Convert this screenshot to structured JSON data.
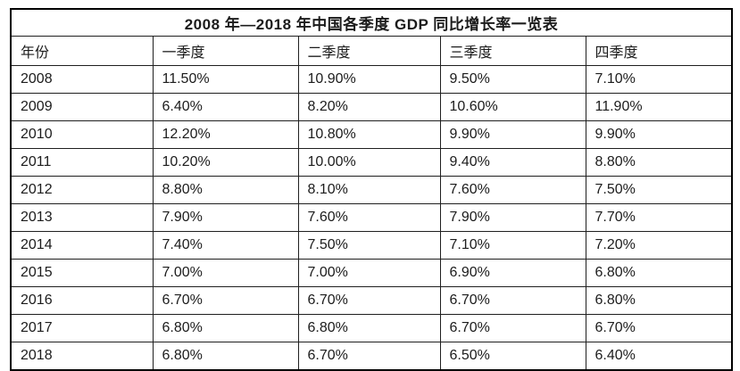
{
  "colors": {
    "background": "#ffffff",
    "outer_border": "#000000",
    "inner_border": "#1f1f1f",
    "text": "#1c1c1c"
  },
  "chart_data": {
    "type": "table",
    "title": "2008 年—2018 年中国各季度 GDP 同比增长率一览表",
    "headers": [
      "年份",
      "一季度",
      "二季度",
      "三季度",
      "四季度"
    ],
    "rows": [
      [
        "2008",
        "11.50%",
        "10.90%",
        "9.50%",
        "7.10%"
      ],
      [
        "2009",
        "6.40%",
        "8.20%",
        "10.60%",
        "11.90%"
      ],
      [
        "2010",
        "12.20%",
        "10.80%",
        "9.90%",
        "9.90%"
      ],
      [
        "2011",
        "10.20%",
        "10.00%",
        "9.40%",
        "8.80%"
      ],
      [
        "2012",
        "8.80%",
        "8.10%",
        "7.60%",
        "7.50%"
      ],
      [
        "2013",
        "7.90%",
        "7.60%",
        "7.90%",
        "7.70%"
      ],
      [
        "2014",
        "7.40%",
        "7.50%",
        "7.10%",
        "7.20%"
      ],
      [
        "2015",
        "7.00%",
        "7.00%",
        "6.90%",
        "6.80%"
      ],
      [
        "2016",
        "6.70%",
        "6.70%",
        "6.70%",
        "6.80%"
      ],
      [
        "2017",
        "6.80%",
        "6.80%",
        "6.70%",
        "6.70%"
      ],
      [
        "2018",
        "6.80%",
        "6.70%",
        "6.50%",
        "6.40%"
      ]
    ]
  }
}
